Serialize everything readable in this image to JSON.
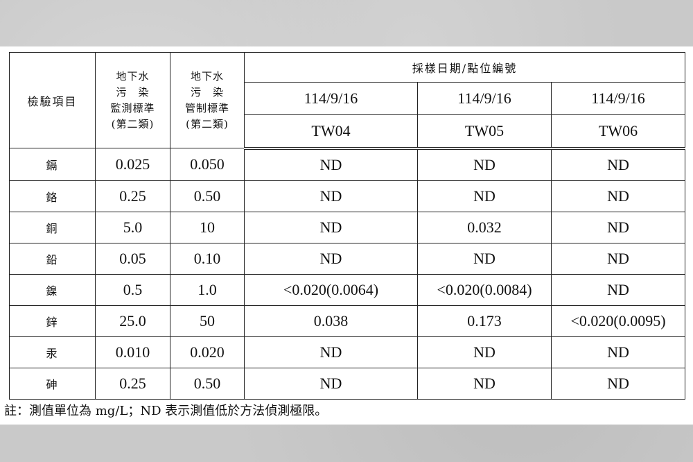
{
  "table": {
    "item_header": "檢驗項目",
    "monitor_header": [
      "地下水",
      "污　染",
      "監測標準",
      "(第二類)"
    ],
    "control_header": [
      "地下水",
      "污　染",
      "管制標準",
      "(第二類)"
    ],
    "sampling_header": "採樣日期/點位編號",
    "sites": [
      {
        "date": "114/9/16",
        "id": "TW04"
      },
      {
        "date": "114/9/16",
        "id": "TW05"
      },
      {
        "date": "114/9/16",
        "id": "TW06"
      }
    ],
    "rows": [
      {
        "item": "鎘",
        "monitor": "0.025",
        "control": "0.050",
        "values": [
          "ND",
          "ND",
          "ND"
        ]
      },
      {
        "item": "鉻",
        "monitor": "0.25",
        "control": "0.50",
        "values": [
          "ND",
          "ND",
          "ND"
        ]
      },
      {
        "item": "銅",
        "monitor": "5.0",
        "control": "10",
        "values": [
          "ND",
          "0.032",
          "ND"
        ]
      },
      {
        "item": "鉛",
        "monitor": "0.05",
        "control": "0.10",
        "values": [
          "ND",
          "ND",
          "ND"
        ]
      },
      {
        "item": "鎳",
        "monitor": "0.5",
        "control": "1.0",
        "values": [
          "<0.020(0.0064)",
          "<0.020(0.0084)",
          "ND"
        ]
      },
      {
        "item": "鋅",
        "monitor": "25.0",
        "control": "50",
        "values": [
          "0.038",
          "0.173",
          "<0.020(0.0095)"
        ]
      },
      {
        "item": "汞",
        "monitor": "0.010",
        "control": "0.020",
        "values": [
          "ND",
          "ND",
          "ND"
        ]
      },
      {
        "item": "砷",
        "monitor": "0.25",
        "control": "0.50",
        "values": [
          "ND",
          "ND",
          "ND"
        ]
      }
    ]
  },
  "note": "註：測值單位為 mg/L；ND 表示測值低於方法偵測極限。"
}
